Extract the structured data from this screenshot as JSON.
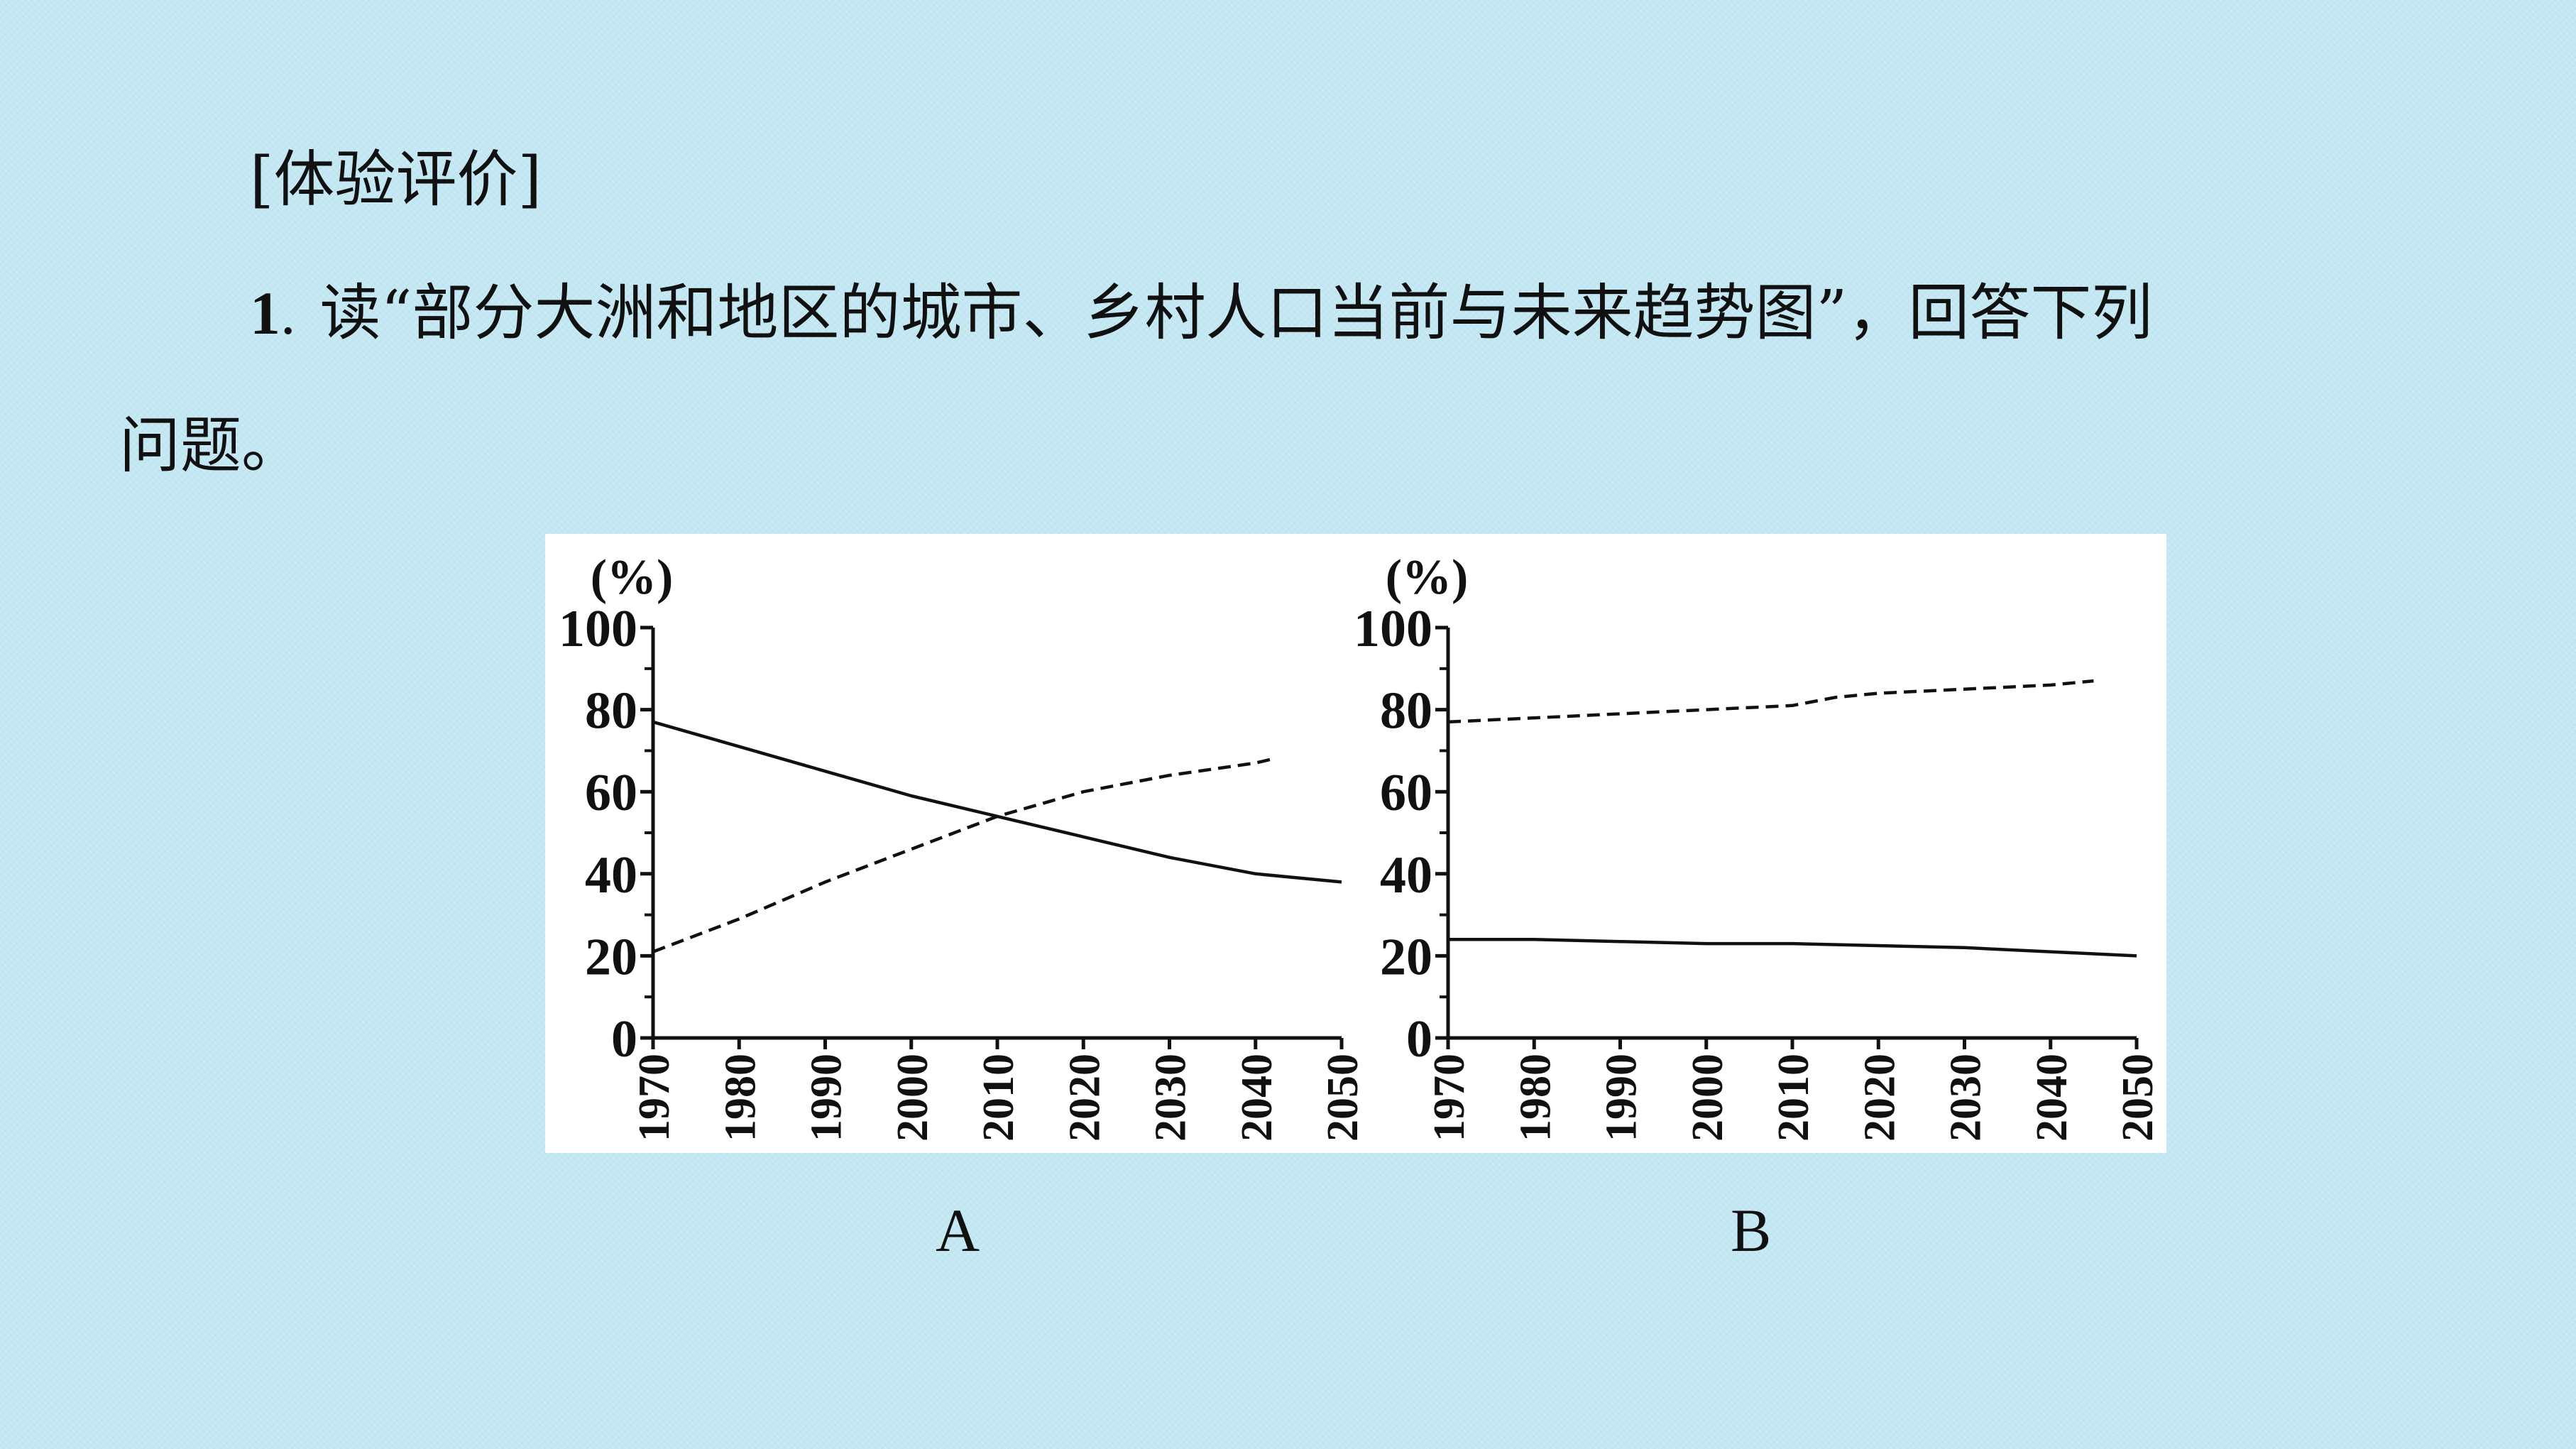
{
  "slide": {
    "heading": "[体验评价]",
    "question_number": "1",
    "question_sep": ".",
    "question_text": "读“部分大洲和地区的城市、乡村人口当前与未来趋势图”，回答下列",
    "question_text_cont": "问题。"
  },
  "chart_data": [
    {
      "type": "line",
      "caption": "A",
      "unit_label": "(%)",
      "x_ticks": [
        "1970",
        "1980",
        "1990",
        "2000",
        "2010",
        "2020",
        "2030",
        "2040",
        "2050"
      ],
      "y_ticks": [
        "0",
        "20",
        "40",
        "60",
        "80",
        "100"
      ],
      "xlim": [
        1970,
        2050
      ],
      "ylim": [
        0,
        100
      ],
      "grid": false,
      "series": [
        {
          "style": "solid",
          "x": [
            1970,
            1980,
            1990,
            2000,
            2010,
            2020,
            2030,
            2040,
            2050
          ],
          "y": [
            77,
            71,
            65,
            59,
            54,
            49,
            44,
            40,
            38
          ]
        },
        {
          "style": "dashed",
          "x": [
            1970,
            1980,
            1990,
            2000,
            2010,
            2020,
            2030,
            2040,
            2042
          ],
          "y": [
            21,
            29,
            38,
            46,
            54,
            60,
            64,
            67,
            68
          ]
        }
      ]
    },
    {
      "type": "line",
      "caption": "B",
      "unit_label": "(%)",
      "x_ticks": [
        "1970",
        "1980",
        "1990",
        "2000",
        "2010",
        "2020",
        "2030",
        "2040",
        "2050"
      ],
      "y_ticks": [
        "0",
        "20",
        "40",
        "60",
        "80",
        "100"
      ],
      "xlim": [
        1970,
        2050
      ],
      "ylim": [
        0,
        100
      ],
      "grid": false,
      "series": [
        {
          "style": "dashed",
          "x": [
            1970,
            1980,
            1990,
            2000,
            2010,
            2015,
            2020,
            2030,
            2040,
            2045
          ],
          "y": [
            77,
            78,
            79,
            80,
            81,
            83,
            84,
            85,
            86,
            87
          ]
        },
        {
          "style": "solid",
          "x": [
            1970,
            1980,
            1990,
            2000,
            2010,
            2020,
            2030,
            2040,
            2050
          ],
          "y": [
            24,
            24,
            23.5,
            23,
            23,
            22.5,
            22,
            21,
            20
          ]
        }
      ]
    }
  ]
}
